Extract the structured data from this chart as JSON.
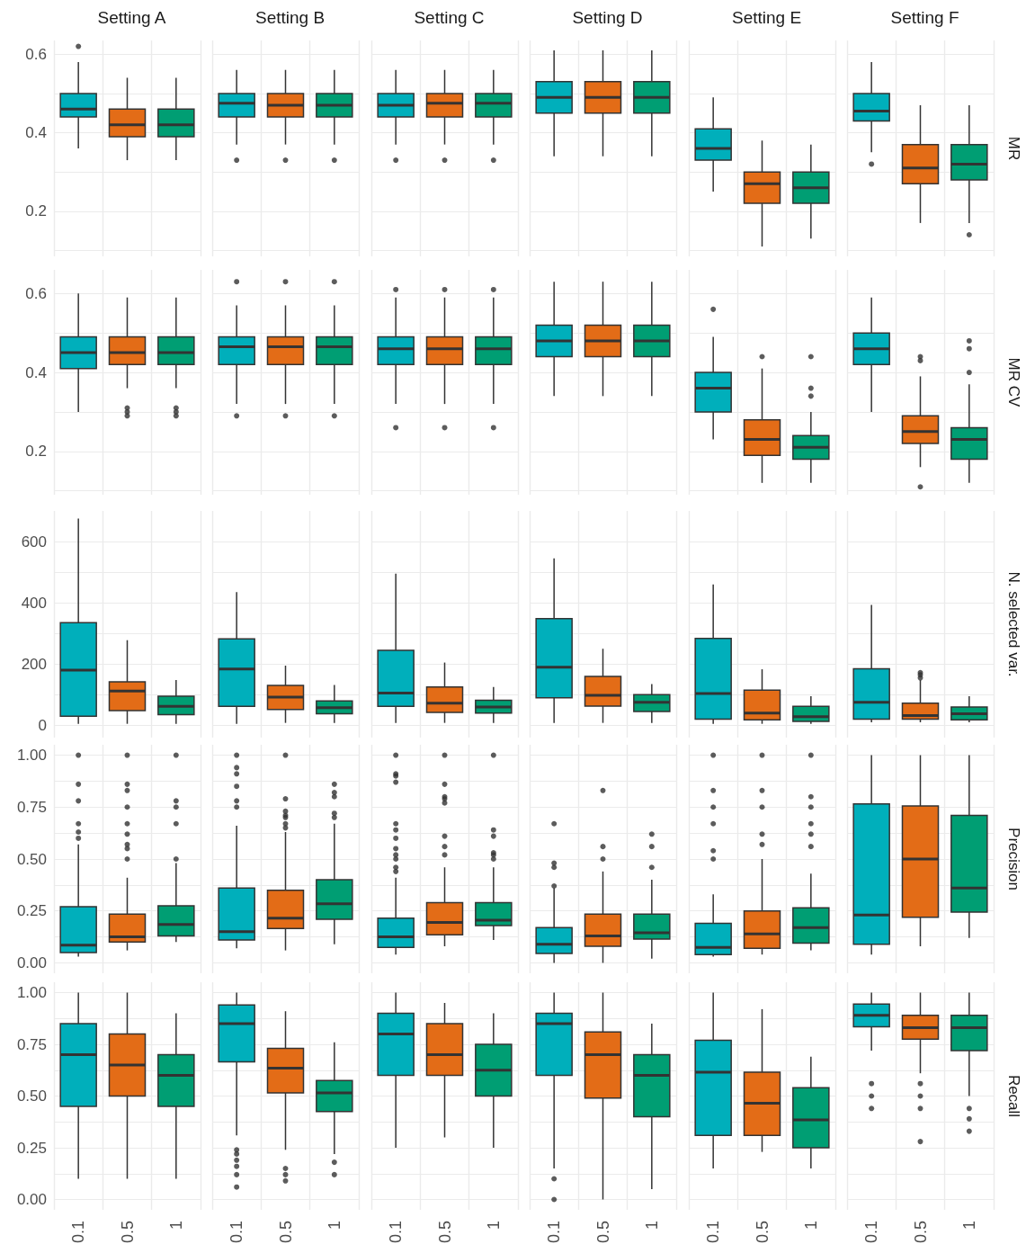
{
  "chart_data": [
    {
      "type": "box",
      "title": "Setting A",
      "categories": [
        "0.1",
        "0.5",
        "1"
      ],
      "colors": [
        "#00afbb",
        "#e36c17",
        "#009e73"
      ],
      "ylim": [
        0.085,
        0.635
      ],
      "yticks": [
        {
          "value": 0.1,
          "label": null
        },
        0.2,
        {
          "value": 0.3,
          "label": null
        },
        0.4,
        {
          "value": 0.5,
          "label": null
        },
        0.6
      ],
      "grid": true,
      "tick_labels": "y",
      "boxes": [
        {
          "low": 0.36,
          "q1": 0.44,
          "median": 0.46,
          "q3": 0.5,
          "high": 0.58,
          "outliers": [
            0.62
          ]
        },
        {
          "low": 0.33,
          "q1": 0.39,
          "median": 0.42,
          "q3": 0.46,
          "high": 0.54
        },
        {
          "low": 0.33,
          "q1": 0.39,
          "median": 0.42,
          "q3": 0.46,
          "high": 0.54
        }
      ]
    },
    {
      "type": "box",
      "title": "Setting B",
      "categories": [
        "0.1",
        "0.5",
        "1"
      ],
      "colors": [
        "#00afbb",
        "#e36c17",
        "#009e73"
      ],
      "ylim": [
        0.085,
        0.635
      ],
      "yticks": [
        {
          "value": 0.1,
          "label": null
        },
        0.2,
        {
          "value": 0.3,
          "label": null
        },
        0.4,
        {
          "value": 0.5,
          "label": null
        },
        0.6
      ],
      "grid": true,
      "tick_labels": false,
      "boxes": [
        {
          "low": 0.37,
          "q1": 0.44,
          "median": 0.475,
          "q3": 0.5,
          "high": 0.56,
          "outliers": [
            0.33
          ]
        },
        {
          "low": 0.37,
          "q1": 0.44,
          "median": 0.47,
          "q3": 0.5,
          "high": 0.56,
          "outliers": [
            0.33
          ]
        },
        {
          "low": 0.37,
          "q1": 0.44,
          "median": 0.47,
          "q3": 0.5,
          "high": 0.56,
          "outliers": [
            0.33
          ]
        }
      ]
    },
    {
      "type": "box",
      "title": "Setting C",
      "categories": [
        "0.1",
        "0.5",
        "1"
      ],
      "colors": [
        "#00afbb",
        "#e36c17",
        "#009e73"
      ],
      "ylim": [
        0.085,
        0.635
      ],
      "yticks": [
        {
          "value": 0.1,
          "label": null
        },
        0.2,
        {
          "value": 0.3,
          "label": null
        },
        0.4,
        {
          "value": 0.5,
          "label": null
        },
        0.6
      ],
      "grid": true,
      "tick_labels": false,
      "boxes": [
        {
          "low": 0.37,
          "q1": 0.44,
          "median": 0.47,
          "q3": 0.5,
          "high": 0.56,
          "outliers": [
            0.33
          ]
        },
        {
          "low": 0.37,
          "q1": 0.44,
          "median": 0.475,
          "q3": 0.5,
          "high": 0.56,
          "outliers": [
            0.33
          ]
        },
        {
          "low": 0.37,
          "q1": 0.44,
          "median": 0.475,
          "q3": 0.5,
          "high": 0.56,
          "outliers": [
            0.33
          ]
        }
      ]
    },
    {
      "type": "box",
      "title": "Setting D",
      "categories": [
        "0.1",
        "0.5",
        "1"
      ],
      "colors": [
        "#00afbb",
        "#e36c17",
        "#009e73"
      ],
      "ylim": [
        0.085,
        0.635
      ],
      "yticks": [
        {
          "value": 0.1,
          "label": null
        },
        0.2,
        {
          "value": 0.3,
          "label": null
        },
        0.4,
        {
          "value": 0.5,
          "label": null
        },
        0.6
      ],
      "grid": true,
      "tick_labels": false,
      "boxes": [
        {
          "low": 0.34,
          "q1": 0.45,
          "median": 0.49,
          "q3": 0.53,
          "high": 0.61
        },
        {
          "low": 0.34,
          "q1": 0.45,
          "median": 0.49,
          "q3": 0.53,
          "high": 0.61
        },
        {
          "low": 0.34,
          "q1": 0.45,
          "median": 0.49,
          "q3": 0.53,
          "high": 0.61
        }
      ]
    },
    {
      "type": "box",
      "title": "Setting E",
      "categories": [
        "0.1",
        "0.5",
        "1"
      ],
      "colors": [
        "#00afbb",
        "#e36c17",
        "#009e73"
      ],
      "ylim": [
        0.085,
        0.635
      ],
      "yticks": [
        {
          "value": 0.1,
          "label": null
        },
        0.2,
        {
          "value": 0.3,
          "label": null
        },
        0.4,
        {
          "value": 0.5,
          "label": null
        },
        0.6
      ],
      "grid": true,
      "tick_labels": false,
      "boxes": [
        {
          "low": 0.25,
          "q1": 0.33,
          "median": 0.36,
          "q3": 0.41,
          "high": 0.49
        },
        {
          "low": 0.11,
          "q1": 0.22,
          "median": 0.27,
          "q3": 0.3,
          "high": 0.38
        },
        {
          "low": 0.13,
          "q1": 0.22,
          "median": 0.26,
          "q3": 0.3,
          "high": 0.37
        }
      ]
    },
    {
      "type": "box",
      "title": "Setting F",
      "ylabel": "MR",
      "categories": [
        "0.1",
        "0.5",
        "1"
      ],
      "colors": [
        "#00afbb",
        "#e36c17",
        "#009e73"
      ],
      "ylim": [
        0.085,
        0.635
      ],
      "yticks": [
        {
          "value": 0.1,
          "label": null
        },
        0.2,
        {
          "value": 0.3,
          "label": null
        },
        0.4,
        {
          "value": 0.5,
          "label": null
        },
        0.6
      ],
      "grid": true,
      "tick_labels": false,
      "boxes": [
        {
          "low": 0.35,
          "q1": 0.43,
          "median": 0.455,
          "q3": 0.5,
          "high": 0.58,
          "outliers": [
            0.32
          ]
        },
        {
          "low": 0.17,
          "q1": 0.27,
          "median": 0.31,
          "q3": 0.37,
          "high": 0.47
        },
        {
          "low": 0.17,
          "q1": 0.28,
          "median": 0.32,
          "q3": 0.37,
          "high": 0.47,
          "outliers": [
            0.14
          ]
        }
      ]
    },
    {
      "type": "box",
      "categories": [
        "0.1",
        "0.5",
        "1"
      ],
      "colors": [
        "#00afbb",
        "#e36c17",
        "#009e73"
      ],
      "ylim": [
        0.09,
        0.66
      ],
      "yticks": [
        {
          "value": 0.1,
          "label": null
        },
        0.2,
        {
          "value": 0.3,
          "label": null
        },
        0.4,
        {
          "value": 0.5,
          "label": null
        },
        0.6
      ],
      "grid": true,
      "tick_labels": "y",
      "boxes": [
        {
          "low": 0.3,
          "q1": 0.41,
          "median": 0.45,
          "q3": 0.49,
          "high": 0.6
        },
        {
          "low": 0.36,
          "q1": 0.42,
          "median": 0.45,
          "q3": 0.49,
          "high": 0.59,
          "outliers": [
            0.29,
            0.3,
            0.31
          ]
        },
        {
          "low": 0.36,
          "q1": 0.42,
          "median": 0.45,
          "q3": 0.49,
          "high": 0.59,
          "outliers": [
            0.29,
            0.3,
            0.31
          ]
        }
      ]
    },
    {
      "type": "box",
      "categories": [
        "0.1",
        "0.5",
        "1"
      ],
      "colors": [
        "#00afbb",
        "#e36c17",
        "#009e73"
      ],
      "ylim": [
        0.09,
        0.66
      ],
      "yticks": [
        {
          "value": 0.1,
          "label": null
        },
        0.2,
        {
          "value": 0.3,
          "label": null
        },
        0.4,
        {
          "value": 0.5,
          "label": null
        },
        0.6
      ],
      "grid": true,
      "tick_labels": false,
      "boxes": [
        {
          "low": 0.32,
          "q1": 0.42,
          "median": 0.465,
          "q3": 0.49,
          "high": 0.57,
          "outliers": [
            0.29,
            0.63
          ]
        },
        {
          "low": 0.32,
          "q1": 0.42,
          "median": 0.465,
          "q3": 0.49,
          "high": 0.57,
          "outliers": [
            0.29,
            0.63
          ]
        },
        {
          "low": 0.32,
          "q1": 0.42,
          "median": 0.465,
          "q3": 0.49,
          "high": 0.57,
          "outliers": [
            0.29,
            0.63
          ]
        }
      ]
    },
    {
      "type": "box",
      "categories": [
        "0.1",
        "0.5",
        "1"
      ],
      "colors": [
        "#00afbb",
        "#e36c17",
        "#009e73"
      ],
      "ylim": [
        0.09,
        0.66
      ],
      "yticks": [
        {
          "value": 0.1,
          "label": null
        },
        0.2,
        {
          "value": 0.3,
          "label": null
        },
        0.4,
        {
          "value": 0.5,
          "label": null
        },
        0.6
      ],
      "grid": true,
      "tick_labels": false,
      "boxes": [
        {
          "low": 0.32,
          "q1": 0.42,
          "median": 0.46,
          "q3": 0.49,
          "high": 0.59,
          "outliers": [
            0.26,
            0.61
          ]
        },
        {
          "low": 0.32,
          "q1": 0.42,
          "median": 0.46,
          "q3": 0.49,
          "high": 0.59,
          "outliers": [
            0.26,
            0.61
          ]
        },
        {
          "low": 0.32,
          "q1": 0.42,
          "median": 0.46,
          "q3": 0.49,
          "high": 0.59,
          "outliers": [
            0.26,
            0.61
          ]
        }
      ]
    },
    {
      "type": "box",
      "categories": [
        "0.1",
        "0.5",
        "1"
      ],
      "colors": [
        "#00afbb",
        "#e36c17",
        "#009e73"
      ],
      "ylim": [
        0.09,
        0.66
      ],
      "yticks": [
        {
          "value": 0.1,
          "label": null
        },
        0.2,
        {
          "value": 0.3,
          "label": null
        },
        0.4,
        {
          "value": 0.5,
          "label": null
        },
        0.6
      ],
      "grid": true,
      "tick_labels": false,
      "boxes": [
        {
          "low": 0.34,
          "q1": 0.44,
          "median": 0.48,
          "q3": 0.52,
          "high": 0.63
        },
        {
          "low": 0.34,
          "q1": 0.44,
          "median": 0.48,
          "q3": 0.52,
          "high": 0.63
        },
        {
          "low": 0.34,
          "q1": 0.44,
          "median": 0.48,
          "q3": 0.52,
          "high": 0.63
        }
      ]
    },
    {
      "type": "box",
      "categories": [
        "0.1",
        "0.5",
        "1"
      ],
      "colors": [
        "#00afbb",
        "#e36c17",
        "#009e73"
      ],
      "ylim": [
        0.09,
        0.66
      ],
      "yticks": [
        {
          "value": 0.1,
          "label": null
        },
        0.2,
        {
          "value": 0.3,
          "label": null
        },
        0.4,
        {
          "value": 0.5,
          "label": null
        },
        0.6
      ],
      "grid": true,
      "tick_labels": false,
      "boxes": [
        {
          "low": 0.23,
          "q1": 0.3,
          "median": 0.36,
          "q3": 0.4,
          "high": 0.49,
          "outliers": [
            0.56
          ]
        },
        {
          "low": 0.12,
          "q1": 0.19,
          "median": 0.23,
          "q3": 0.28,
          "high": 0.41,
          "outliers": [
            0.44
          ]
        },
        {
          "low": 0.12,
          "q1": 0.18,
          "median": 0.21,
          "q3": 0.24,
          "high": 0.3,
          "outliers": [
            0.34,
            0.36,
            0.44
          ]
        }
      ]
    },
    {
      "type": "box",
      "ylabel": "MR CV",
      "categories": [
        "0.1",
        "0.5",
        "1"
      ],
      "colors": [
        "#00afbb",
        "#e36c17",
        "#009e73"
      ],
      "ylim": [
        0.09,
        0.66
      ],
      "yticks": [
        {
          "value": 0.1,
          "label": null
        },
        0.2,
        {
          "value": 0.3,
          "label": null
        },
        0.4,
        {
          "value": 0.5,
          "label": null
        },
        0.6
      ],
      "grid": true,
      "tick_labels": false,
      "boxes": [
        {
          "low": 0.3,
          "q1": 0.42,
          "median": 0.46,
          "q3": 0.5,
          "high": 0.59
        },
        {
          "low": 0.16,
          "q1": 0.22,
          "median": 0.25,
          "q3": 0.29,
          "high": 0.39,
          "outliers": [
            0.11,
            0.43,
            0.44
          ]
        },
        {
          "low": 0.12,
          "q1": 0.18,
          "median": 0.23,
          "q3": 0.26,
          "high": 0.37,
          "outliers": [
            0.4,
            0.46,
            0.48
          ]
        }
      ]
    },
    {
      "type": "box",
      "categories": [
        "0.1",
        "0.5",
        "1"
      ],
      "colors": [
        "#00afbb",
        "#e36c17",
        "#009e73"
      ],
      "ylim": [
        -40,
        700
      ],
      "yticks": [
        0,
        {
          "value": 100,
          "label": null
        },
        200,
        {
          "value": 300,
          "label": null
        },
        400,
        {
          "value": 500,
          "label": null
        },
        600
      ],
      "grid": true,
      "tick_labels": "y",
      "boxes": [
        {
          "low": 5,
          "q1": 30,
          "median": 180,
          "q3": 335,
          "high": 675
        },
        {
          "low": 5,
          "q1": 48,
          "median": 112,
          "q3": 142,
          "high": 278
        },
        {
          "low": 5,
          "q1": 35,
          "median": 62,
          "q3": 95,
          "high": 148
        }
      ]
    },
    {
      "type": "box",
      "categories": [
        "0.1",
        "0.5",
        "1"
      ],
      "colors": [
        "#00afbb",
        "#e36c17",
        "#009e73"
      ],
      "ylim": [
        -40,
        700
      ],
      "yticks": [
        0,
        {
          "value": 100,
          "label": null
        },
        200,
        {
          "value": 300,
          "label": null
        },
        400,
        {
          "value": 500,
          "label": null
        },
        600
      ],
      "grid": true,
      "tick_labels": false,
      "boxes": [
        {
          "low": 5,
          "q1": 62,
          "median": 184,
          "q3": 282,
          "high": 435
        },
        {
          "low": 8,
          "q1": 52,
          "median": 92,
          "q3": 130,
          "high": 195
        },
        {
          "low": 8,
          "q1": 38,
          "median": 58,
          "q3": 80,
          "high": 132
        }
      ]
    },
    {
      "type": "box",
      "categories": [
        "0.1",
        "0.5",
        "1"
      ],
      "colors": [
        "#00afbb",
        "#e36c17",
        "#009e73"
      ],
      "ylim": [
        -40,
        700
      ],
      "yticks": [
        0,
        {
          "value": 100,
          "label": null
        },
        200,
        {
          "value": 300,
          "label": null
        },
        400,
        {
          "value": 500,
          "label": null
        },
        600
      ],
      "grid": true,
      "tick_labels": false,
      "boxes": [
        {
          "low": 8,
          "q1": 62,
          "median": 105,
          "q3": 245,
          "high": 495
        },
        {
          "low": 8,
          "q1": 42,
          "median": 72,
          "q3": 125,
          "high": 205
        },
        {
          "low": 8,
          "q1": 40,
          "median": 60,
          "q3": 82,
          "high": 125
        }
      ]
    },
    {
      "type": "box",
      "categories": [
        "0.1",
        "0.5",
        "1"
      ],
      "colors": [
        "#00afbb",
        "#e36c17",
        "#009e73"
      ],
      "ylim": [
        -40,
        700
      ],
      "yticks": [
        0,
        {
          "value": 100,
          "label": null
        },
        200,
        {
          "value": 300,
          "label": null
        },
        400,
        {
          "value": 500,
          "label": null
        },
        600
      ],
      "grid": true,
      "tick_labels": false,
      "boxes": [
        {
          "low": 8,
          "q1": 90,
          "median": 190,
          "q3": 348,
          "high": 545
        },
        {
          "low": 8,
          "q1": 63,
          "median": 98,
          "q3": 160,
          "high": 250
        },
        {
          "low": 8,
          "q1": 45,
          "median": 75,
          "q3": 100,
          "high": 135
        }
      ]
    },
    {
      "type": "box",
      "categories": [
        "0.1",
        "0.5",
        "1"
      ],
      "colors": [
        "#00afbb",
        "#e36c17",
        "#009e73"
      ],
      "ylim": [
        -40,
        700
      ],
      "yticks": [
        0,
        {
          "value": 100,
          "label": null
        },
        200,
        {
          "value": 300,
          "label": null
        },
        400,
        {
          "value": 500,
          "label": null
        },
        600
      ],
      "grid": true,
      "tick_labels": false,
      "boxes": [
        {
          "low": 5,
          "q1": 20,
          "median": 104,
          "q3": 284,
          "high": 460
        },
        {
          "low": 5,
          "q1": 18,
          "median": 40,
          "q3": 115,
          "high": 183
        },
        {
          "low": 5,
          "q1": 13,
          "median": 28,
          "q3": 62,
          "high": 95
        }
      ]
    },
    {
      "type": "box",
      "ylabel": "N. selected var.",
      "categories": [
        "0.1",
        "0.5",
        "1"
      ],
      "colors": [
        "#00afbb",
        "#e36c17",
        "#009e73"
      ],
      "ylim": [
        -40,
        700
      ],
      "yticks": [
        0,
        {
          "value": 100,
          "label": null
        },
        200,
        {
          "value": 300,
          "label": null
        },
        400,
        {
          "value": 500,
          "label": null
        },
        600
      ],
      "grid": true,
      "tick_labels": false,
      "boxes": [
        {
          "low": 10,
          "q1": 20,
          "median": 75,
          "q3": 185,
          "high": 393
        },
        {
          "low": 10,
          "q1": 20,
          "median": 32,
          "q3": 72,
          "high": 148,
          "outliers": [
            155,
            165,
            172
          ]
        },
        {
          "low": 10,
          "q1": 18,
          "median": 38,
          "q3": 60,
          "high": 95
        }
      ]
    },
    {
      "type": "box",
      "categories": [
        "0.1",
        "0.5",
        "1"
      ],
      "colors": [
        "#00afbb",
        "#e36c17",
        "#009e73"
      ],
      "ylim": [
        -0.05,
        1.05
      ],
      "yticks": [
        {
          "value": 0,
          "label": "0.00"
        },
        {
          "value": 0.125,
          "label": null
        },
        {
          "value": 0.25,
          "label": "0.25"
        },
        {
          "value": 0.375,
          "label": null
        },
        {
          "value": 0.5,
          "label": "0.50"
        },
        {
          "value": 0.625,
          "label": null
        },
        {
          "value": 0.75,
          "label": "0.75"
        },
        {
          "value": 0.875,
          "label": null
        },
        {
          "value": 1,
          "label": "1.00"
        }
      ],
      "grid": true,
      "tick_labels": "y",
      "boxes": [
        {
          "low": 0.03,
          "q1": 0.05,
          "median": 0.085,
          "q3": 0.27,
          "high": 0.57,
          "outliers": [
            0.6,
            0.63,
            0.67,
            0.78,
            0.86,
            1
          ]
        },
        {
          "low": 0.06,
          "q1": 0.1,
          "median": 0.125,
          "q3": 0.235,
          "high": 0.41,
          "outliers": [
            0.5,
            0.55,
            0.57,
            0.62,
            0.67,
            0.75,
            0.83,
            0.86,
            1
          ]
        },
        {
          "low": 0.1,
          "q1": 0.13,
          "median": 0.185,
          "q3": 0.275,
          "high": 0.48,
          "outliers": [
            0.5,
            0.67,
            0.75,
            0.78,
            1
          ]
        }
      ]
    },
    {
      "type": "box",
      "categories": [
        "0.1",
        "0.5",
        "1"
      ],
      "colors": [
        "#00afbb",
        "#e36c17",
        "#009e73"
      ],
      "ylim": [
        -0.05,
        1.05
      ],
      "yticks": [
        0,
        {
          "value": 0.125,
          "label": null
        },
        0.25,
        {
          "value": 0.375,
          "label": null
        },
        0.5,
        {
          "value": 0.625,
          "label": null
        },
        0.75,
        {
          "value": 0.875,
          "label": null
        },
        1
      ],
      "grid": true,
      "tick_labels": false,
      "boxes": [
        {
          "low": 0.07,
          "q1": 0.11,
          "median": 0.15,
          "q3": 0.36,
          "high": 0.66,
          "outliers": [
            0.75,
            0.78,
            0.85,
            0.91,
            0.94,
            1
          ]
        },
        {
          "low": 0.06,
          "q1": 0.165,
          "median": 0.215,
          "q3": 0.35,
          "high": 0.63,
          "outliers": [
            0.65,
            0.67,
            0.7,
            0.71,
            0.73,
            0.79,
            1
          ]
        },
        {
          "low": 0.09,
          "q1": 0.21,
          "median": 0.285,
          "q3": 0.4,
          "high": 0.67,
          "outliers": [
            0.7,
            0.72,
            0.8,
            0.82,
            0.86
          ]
        }
      ]
    },
    {
      "type": "box",
      "categories": [
        "0.1",
        "0.5",
        "1"
      ],
      "colors": [
        "#00afbb",
        "#e36c17",
        "#009e73"
      ],
      "ylim": [
        -0.05,
        1.05
      ],
      "yticks": [
        0,
        {
          "value": 0.125,
          "label": null
        },
        0.25,
        {
          "value": 0.375,
          "label": null
        },
        0.5,
        {
          "value": 0.625,
          "label": null
        },
        0.75,
        {
          "value": 0.875,
          "label": null
        },
        1
      ],
      "grid": true,
      "tick_labels": false,
      "boxes": [
        {
          "low": 0.04,
          "q1": 0.075,
          "median": 0.125,
          "q3": 0.215,
          "high": 0.41,
          "outliers": [
            0.44,
            0.46,
            0.5,
            0.52,
            0.55,
            0.6,
            0.64,
            0.67,
            0.87,
            0.9,
            0.91,
            1
          ]
        },
        {
          "low": 0.08,
          "q1": 0.135,
          "median": 0.195,
          "q3": 0.29,
          "high": 0.46,
          "outliers": [
            0.52,
            0.56,
            0.61,
            0.77,
            0.79,
            0.8,
            0.86,
            1
          ]
        },
        {
          "low": 0.11,
          "q1": 0.18,
          "median": 0.205,
          "q3": 0.29,
          "high": 0.46,
          "outliers": [
            0.5,
            0.52,
            0.53,
            0.61,
            0.64,
            1
          ]
        }
      ]
    },
    {
      "type": "box",
      "categories": [
        "0.1",
        "0.5",
        "1"
      ],
      "colors": [
        "#00afbb",
        "#e36c17",
        "#009e73"
      ],
      "ylim": [
        -0.05,
        1.05
      ],
      "yticks": [
        0,
        {
          "value": 0.125,
          "label": null
        },
        0.25,
        {
          "value": 0.375,
          "label": null
        },
        0.5,
        {
          "value": 0.625,
          "label": null
        },
        0.75,
        {
          "value": 0.875,
          "label": null
        },
        1
      ],
      "grid": true,
      "tick_labels": false,
      "boxes": [
        {
          "low": 0,
          "q1": 0.045,
          "median": 0.09,
          "q3": 0.17,
          "high": 0.36,
          "outliers": [
            0.37,
            0.46,
            0.48,
            0.67
          ]
        },
        {
          "low": 0,
          "q1": 0.08,
          "median": 0.13,
          "q3": 0.235,
          "high": 0.44,
          "outliers": [
            0.5,
            0.56,
            0.83
          ]
        },
        {
          "low": 0.02,
          "q1": 0.115,
          "median": 0.145,
          "q3": 0.235,
          "high": 0.4,
          "outliers": [
            0.46,
            0.56,
            0.62
          ]
        }
      ]
    },
    {
      "type": "box",
      "categories": [
        "0.1",
        "0.5",
        "1"
      ],
      "colors": [
        "#00afbb",
        "#e36c17",
        "#009e73"
      ],
      "ylim": [
        -0.05,
        1.05
      ],
      "yticks": [
        0,
        {
          "value": 0.125,
          "label": null
        },
        0.25,
        {
          "value": 0.375,
          "label": null
        },
        0.5,
        {
          "value": 0.625,
          "label": null
        },
        0.75,
        {
          "value": 0.875,
          "label": null
        },
        1
      ],
      "grid": true,
      "tick_labels": false,
      "boxes": [
        {
          "low": 0.03,
          "q1": 0.04,
          "median": 0.075,
          "q3": 0.19,
          "high": 0.33,
          "outliers": [
            0.5,
            0.54,
            0.67,
            0.75,
            0.83,
            1
          ]
        },
        {
          "low": 0.04,
          "q1": 0.07,
          "median": 0.14,
          "q3": 0.25,
          "high": 0.5,
          "outliers": [
            0.57,
            0.62,
            0.75,
            0.83,
            1
          ]
        },
        {
          "low": 0.06,
          "q1": 0.095,
          "median": 0.17,
          "q3": 0.265,
          "high": 0.43,
          "outliers": [
            0.56,
            0.62,
            0.67,
            0.75,
            0.8,
            1
          ]
        }
      ]
    },
    {
      "type": "box",
      "ylabel": "Precision",
      "categories": [
        "0.1",
        "0.5",
        "1"
      ],
      "colors": [
        "#00afbb",
        "#e36c17",
        "#009e73"
      ],
      "ylim": [
        -0.05,
        1.05
      ],
      "yticks": [
        0,
        {
          "value": 0.125,
          "label": null
        },
        0.25,
        {
          "value": 0.375,
          "label": null
        },
        0.5,
        {
          "value": 0.625,
          "label": null
        },
        0.75,
        {
          "value": 0.875,
          "label": null
        },
        1
      ],
      "grid": true,
      "tick_labels": false,
      "boxes": [
        {
          "low": 0.04,
          "q1": 0.09,
          "median": 0.23,
          "q3": 0.765,
          "high": 1
        },
        {
          "low": 0.08,
          "q1": 0.22,
          "median": 0.5,
          "q3": 0.755,
          "high": 1
        },
        {
          "low": 0.12,
          "q1": 0.245,
          "median": 0.36,
          "q3": 0.71,
          "high": 1
        }
      ]
    },
    {
      "type": "box",
      "categories": [
        "0.1",
        "0.5",
        "1"
      ],
      "colors": [
        "#00afbb",
        "#e36c17",
        "#009e73"
      ],
      "ylim": [
        -0.05,
        1.05
      ],
      "yticks": [
        {
          "value": 0,
          "label": "0.00"
        },
        {
          "value": 0.125,
          "label": null
        },
        {
          "value": 0.25,
          "label": "0.25"
        },
        {
          "value": 0.375,
          "label": null
        },
        {
          "value": 0.5,
          "label": "0.50"
        },
        {
          "value": 0.625,
          "label": null
        },
        {
          "value": 0.75,
          "label": "0.75"
        },
        {
          "value": 0.875,
          "label": null
        },
        {
          "value": 1,
          "label": "1.00"
        }
      ],
      "grid": true,
      "boxes": [
        {
          "low": 0.1,
          "q1": 0.45,
          "median": 0.7,
          "q3": 0.85,
          "high": 1
        },
        {
          "low": 0.1,
          "q1": 0.5,
          "median": 0.65,
          "q3": 0.8,
          "high": 1
        },
        {
          "low": 0.1,
          "q1": 0.45,
          "median": 0.6,
          "q3": 0.7,
          "high": 0.9
        }
      ]
    },
    {
      "type": "box",
      "categories": [
        "0.1",
        "0.5",
        "1"
      ],
      "colors": [
        "#00afbb",
        "#e36c17",
        "#009e73"
      ],
      "ylim": [
        -0.05,
        1.05
      ],
      "yticks": [
        0,
        {
          "value": 0.125,
          "label": null
        },
        0.25,
        {
          "value": 0.375,
          "label": null
        },
        0.5,
        {
          "value": 0.625,
          "label": null
        },
        0.75,
        {
          "value": 0.875,
          "label": null
        },
        1
      ],
      "grid": true,
      "tick_labels": "x",
      "boxes": [
        {
          "low": 0.31,
          "q1": 0.665,
          "median": 0.85,
          "q3": 0.94,
          "high": 1,
          "outliers": [
            0.06,
            0.12,
            0.16,
            0.19,
            0.22,
            0.24
          ]
        },
        {
          "low": 0.24,
          "q1": 0.515,
          "median": 0.635,
          "q3": 0.73,
          "high": 0.91,
          "outliers": [
            0.09,
            0.12,
            0.15
          ]
        },
        {
          "low": 0.22,
          "q1": 0.425,
          "median": 0.515,
          "q3": 0.575,
          "high": 0.76,
          "outliers": [
            0.12,
            0.18
          ]
        }
      ]
    },
    {
      "type": "box",
      "categories": [
        "0.1",
        "0.5",
        "1"
      ],
      "colors": [
        "#00afbb",
        "#e36c17",
        "#009e73"
      ],
      "ylim": [
        -0.05,
        1.05
      ],
      "yticks": [
        0,
        {
          "value": 0.125,
          "label": null
        },
        0.25,
        {
          "value": 0.375,
          "label": null
        },
        0.5,
        {
          "value": 0.625,
          "label": null
        },
        0.75,
        {
          "value": 0.875,
          "label": null
        },
        1
      ],
      "grid": true,
      "tick_labels": "x",
      "boxes": [
        {
          "low": 0.25,
          "q1": 0.6,
          "median": 0.8,
          "q3": 0.9,
          "high": 1
        },
        {
          "low": 0.3,
          "q1": 0.6,
          "median": 0.7,
          "q3": 0.85,
          "high": 0.95
        },
        {
          "low": 0.25,
          "q1": 0.5,
          "median": 0.625,
          "q3": 0.75,
          "high": 0.9
        }
      ]
    },
    {
      "type": "box",
      "categories": [
        "0.1",
        "0.5",
        "1"
      ],
      "colors": [
        "#00afbb",
        "#e36c17",
        "#009e73"
      ],
      "ylim": [
        -0.05,
        1.05
      ],
      "yticks": [
        0,
        {
          "value": 0.125,
          "label": null
        },
        0.25,
        {
          "value": 0.375,
          "label": null
        },
        0.5,
        {
          "value": 0.625,
          "label": null
        },
        0.75,
        {
          "value": 0.875,
          "label": null
        },
        1
      ],
      "grid": true,
      "tick_labels": "x",
      "boxes": [
        {
          "low": 0.15,
          "q1": 0.6,
          "median": 0.85,
          "q3": 0.9,
          "high": 1,
          "outliers": [
            0,
            0.1
          ]
        },
        {
          "low": 0,
          "q1": 0.49,
          "median": 0.7,
          "q3": 0.81,
          "high": 1
        },
        {
          "low": 0.05,
          "q1": 0.4,
          "median": 0.6,
          "q3": 0.7,
          "high": 0.85
        }
      ]
    },
    {
      "type": "box",
      "categories": [
        "0.1",
        "0.5",
        "1"
      ],
      "colors": [
        "#00afbb",
        "#e36c17",
        "#009e73"
      ],
      "ylim": [
        -0.05,
        1.05
      ],
      "yticks": [
        0,
        {
          "value": 0.125,
          "label": null
        },
        0.25,
        {
          "value": 0.375,
          "label": null
        },
        0.5,
        {
          "value": 0.625,
          "label": null
        },
        0.75,
        {
          "value": 0.875,
          "label": null
        },
        1
      ],
      "grid": true,
      "tick_labels": "x",
      "boxes": [
        {
          "low": 0.15,
          "q1": 0.31,
          "median": 0.615,
          "q3": 0.77,
          "high": 1
        },
        {
          "low": 0.23,
          "q1": 0.31,
          "median": 0.465,
          "q3": 0.615,
          "high": 0.92
        },
        {
          "low": 0.15,
          "q1": 0.25,
          "median": 0.385,
          "q3": 0.54,
          "high": 0.69
        }
      ]
    },
    {
      "type": "box",
      "ylabel": "Recall",
      "categories": [
        "0.1",
        "0.5",
        "1"
      ],
      "colors": [
        "#00afbb",
        "#e36c17",
        "#009e73"
      ],
      "ylim": [
        -0.05,
        1.05
      ],
      "yticks": [
        0,
        {
          "value": 0.125,
          "label": null
        },
        0.25,
        {
          "value": 0.375,
          "label": null
        },
        0.5,
        {
          "value": 0.625,
          "label": null
        },
        0.75,
        {
          "value": 0.875,
          "label": null
        },
        1
      ],
      "grid": true,
      "tick_labels": "x",
      "boxes": [
        {
          "low": 0.72,
          "q1": 0.835,
          "median": 0.89,
          "q3": 0.945,
          "high": 1,
          "outliers": [
            0.44,
            0.5,
            0.56
          ]
        },
        {
          "low": 0.61,
          "q1": 0.775,
          "median": 0.83,
          "q3": 0.89,
          "high": 1,
          "outliers": [
            0.28,
            0.44,
            0.5,
            0.56
          ]
        },
        {
          "low": 0.5,
          "q1": 0.72,
          "median": 0.83,
          "q3": 0.89,
          "high": 1,
          "outliers": [
            0.33,
            0.39,
            0.44
          ]
        }
      ]
    }
  ]
}
